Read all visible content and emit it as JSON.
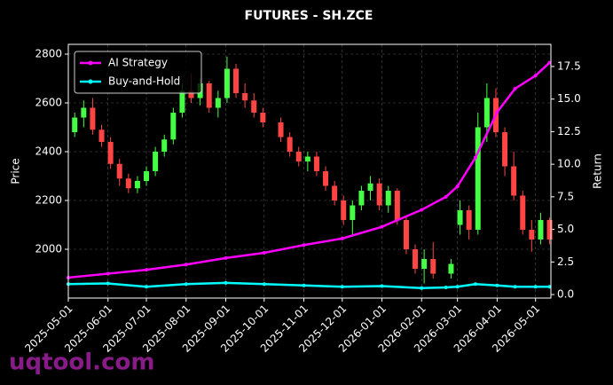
{
  "chart_data": {
    "type": "candlestick",
    "title": "FUTURES - SH.ZCE",
    "ylabel": "Price",
    "y2label": "Return",
    "watermark": "uqtool.com",
    "x": [
      "2025-05-06",
      "2025-05-13",
      "2025-05-20",
      "2025-05-27",
      "2025-06-03",
      "2025-06-10",
      "2025-06-17",
      "2025-06-24",
      "2025-07-01",
      "2025-07-08",
      "2025-07-15",
      "2025-07-22",
      "2025-07-29",
      "2025-08-05",
      "2025-08-12",
      "2025-08-19",
      "2025-08-26",
      "2025-09-02",
      "2025-09-09",
      "2025-09-16",
      "2025-09-23",
      "2025-09-30",
      "2025-10-14",
      "2025-10-21",
      "2025-10-28",
      "2025-11-04",
      "2025-11-11",
      "2025-11-18",
      "2025-11-25",
      "2025-12-02",
      "2025-12-09",
      "2025-12-16",
      "2025-12-23",
      "2025-12-30",
      "2026-01-06",
      "2026-01-13",
      "2026-01-20",
      "2026-01-27",
      "2026-02-03",
      "2026-02-10",
      "2026-02-24",
      "2026-03-03",
      "2026-03-10",
      "2026-03-17",
      "2026-03-24",
      "2026-03-31",
      "2026-04-07",
      "2026-04-14",
      "2026-04-21",
      "2026-04-28",
      "2026-05-05",
      "2026-05-12"
    ],
    "open": [
      2480,
      2540,
      2580,
      2490,
      2440,
      2350,
      2290,
      2250,
      2280,
      2320,
      2400,
      2450,
      2560,
      2650,
      2620,
      2680,
      2580,
      2620,
      2740,
      2640,
      2610,
      2560,
      2520,
      2460,
      2400,
      2360,
      2380,
      2320,
      2260,
      2200,
      2120,
      2180,
      2240,
      2270,
      2180,
      2240,
      2120,
      2000,
      1920,
      1960,
      1900,
      2100,
      2160,
      2080,
      2500,
      2620,
      2480,
      2340,
      2220,
      2080,
      2040,
      2120
    ],
    "high": [
      2560,
      2610,
      2620,
      2510,
      2460,
      2370,
      2310,
      2300,
      2340,
      2420,
      2470,
      2580,
      2680,
      2720,
      2700,
      2690,
      2650,
      2790,
      2760,
      2680,
      2640,
      2580,
      2540,
      2480,
      2420,
      2400,
      2400,
      2340,
      2280,
      2220,
      2200,
      2260,
      2300,
      2290,
      2260,
      2250,
      2140,
      2020,
      2000,
      2030,
      1960,
      2200,
      2180,
      2560,
      2680,
      2660,
      2500,
      2400,
      2240,
      2120,
      2150,
      2130
    ],
    "low": [
      2460,
      2500,
      2470,
      2420,
      2330,
      2260,
      2230,
      2230,
      2260,
      2300,
      2380,
      2430,
      2540,
      2600,
      2590,
      2560,
      2540,
      2600,
      2620,
      2580,
      2540,
      2500,
      2440,
      2380,
      2340,
      2320,
      2300,
      2240,
      2180,
      2100,
      2060,
      2160,
      2200,
      2160,
      2150,
      2100,
      1980,
      1900,
      1860,
      1880,
      1880,
      2060,
      2040,
      2060,
      2440,
      2460,
      2300,
      2200,
      2060,
      1990,
      2020,
      2020
    ],
    "close": [
      2540,
      2580,
      2490,
      2440,
      2350,
      2290,
      2250,
      2280,
      2320,
      2400,
      2450,
      2560,
      2650,
      2620,
      2680,
      2580,
      2620,
      2740,
      2640,
      2610,
      2560,
      2520,
      2460,
      2400,
      2360,
      2380,
      2320,
      2260,
      2200,
      2120,
      2180,
      2240,
      2270,
      2180,
      2240,
      2120,
      2000,
      1920,
      1960,
      1900,
      1940,
      2160,
      2080,
      2500,
      2620,
      2480,
      2340,
      2220,
      2080,
      2040,
      2120,
      2040
    ],
    "up_color": "#44ff44",
    "down_color": "#ff4444",
    "series": [
      {
        "name": "AI Strategy",
        "color": "#ff00ff",
        "axis": "y2",
        "x": [
          "2025-05-01",
          "2025-06-01",
          "2025-07-01",
          "2025-08-01",
          "2025-09-01",
          "2025-10-01",
          "2025-11-01",
          "2025-12-01",
          "2026-01-01",
          "2026-02-01",
          "2026-02-20",
          "2026-03-01",
          "2026-03-15",
          "2026-04-01",
          "2026-04-15",
          "2026-05-01",
          "2026-05-12"
        ],
        "values": [
          1.3,
          1.6,
          1.9,
          2.3,
          2.8,
          3.2,
          3.8,
          4.3,
          5.2,
          6.5,
          7.5,
          8.3,
          10.5,
          14.0,
          15.8,
          16.8,
          17.8
        ]
      },
      {
        "name": "Buy-and-Hold",
        "color": "#00ffff",
        "axis": "y2",
        "x": [
          "2025-05-01",
          "2025-06-01",
          "2025-07-01",
          "2025-08-01",
          "2025-09-01",
          "2025-10-01",
          "2025-11-01",
          "2025-12-01",
          "2026-01-01",
          "2026-02-01",
          "2026-02-20",
          "2026-03-01",
          "2026-03-15",
          "2026-04-01",
          "2026-04-15",
          "2026-05-01",
          "2026-05-12"
        ],
        "values": [
          0.8,
          0.85,
          0.6,
          0.8,
          0.9,
          0.8,
          0.7,
          0.6,
          0.65,
          0.5,
          0.55,
          0.6,
          0.8,
          0.7,
          0.6,
          0.6,
          0.6
        ]
      }
    ],
    "xlim": [
      "2025-05-01",
      "2026-05-13"
    ],
    "xticks": [
      "2025-05-01",
      "2025-06-01",
      "2025-07-01",
      "2025-08-01",
      "2025-09-01",
      "2025-10-01",
      "2025-11-01",
      "2025-12-01",
      "2026-01-01",
      "2026-02-01",
      "2026-03-01",
      "2026-04-01",
      "2026-05-01"
    ],
    "ylim": [
      1800,
      2840
    ],
    "yticks": [
      2000,
      2200,
      2400,
      2600,
      2800
    ],
    "y2lim": [
      -0.27,
      19.2
    ],
    "y2ticks": [
      {
        "value": 0,
        "label": "0.0"
      },
      2.5,
      {
        "value": 5,
        "label": "5.0"
      },
      7.5,
      {
        "value": 10,
        "label": "10.0"
      },
      12.5,
      {
        "value": 15,
        "label": "15.0"
      },
      17.5
    ],
    "grid": true,
    "legend": "upper left"
  }
}
